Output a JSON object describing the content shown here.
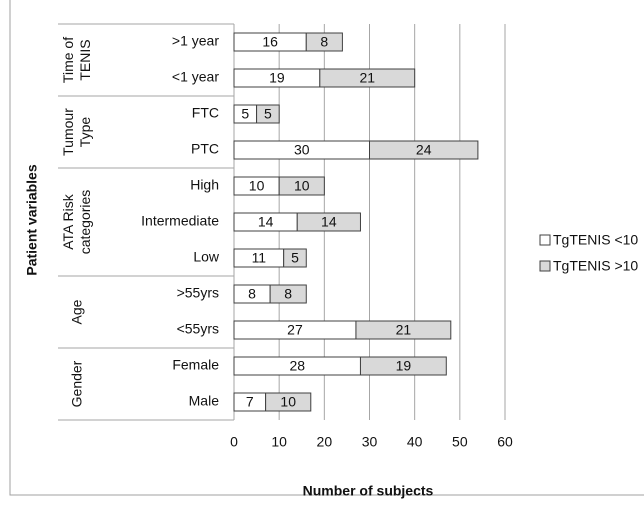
{
  "chart_data": {
    "type": "stacked-barh",
    "xlabel": "Number of subjects",
    "ylabel": "Patient variables",
    "groups": [
      {
        "name": [
          "Time of",
          "TENIS"
        ],
        "categories": [
          ">1 year",
          "<1 year"
        ]
      },
      {
        "name": [
          "Tumour",
          "Type"
        ],
        "categories": [
          "FTC",
          "PTC"
        ]
      },
      {
        "name": [
          "ATA Risk",
          "categories"
        ],
        "categories": [
          "High",
          "Intermediate",
          "Low"
        ]
      },
      {
        "name": [
          "Age"
        ],
        "categories": [
          ">55yrs",
          "<55yrs"
        ]
      },
      {
        "name": [
          "Gender"
        ],
        "categories": [
          "Female",
          "Male"
        ]
      }
    ],
    "series": [
      {
        "name": "TgTENIS <10",
        "color": "#ffffff",
        "values": [
          16,
          19,
          5,
          30,
          10,
          14,
          11,
          8,
          27,
          28,
          7
        ]
      },
      {
        "name": "TgTENIS >10",
        "color": "#d9d9d9",
        "values": [
          8,
          21,
          5,
          24,
          10,
          14,
          5,
          8,
          21,
          19,
          10
        ]
      }
    ],
    "xlim": [
      0,
      60
    ],
    "xticks": [
      0,
      10,
      20,
      30,
      40,
      50,
      60
    ],
    "grid": true,
    "legend": "right"
  }
}
